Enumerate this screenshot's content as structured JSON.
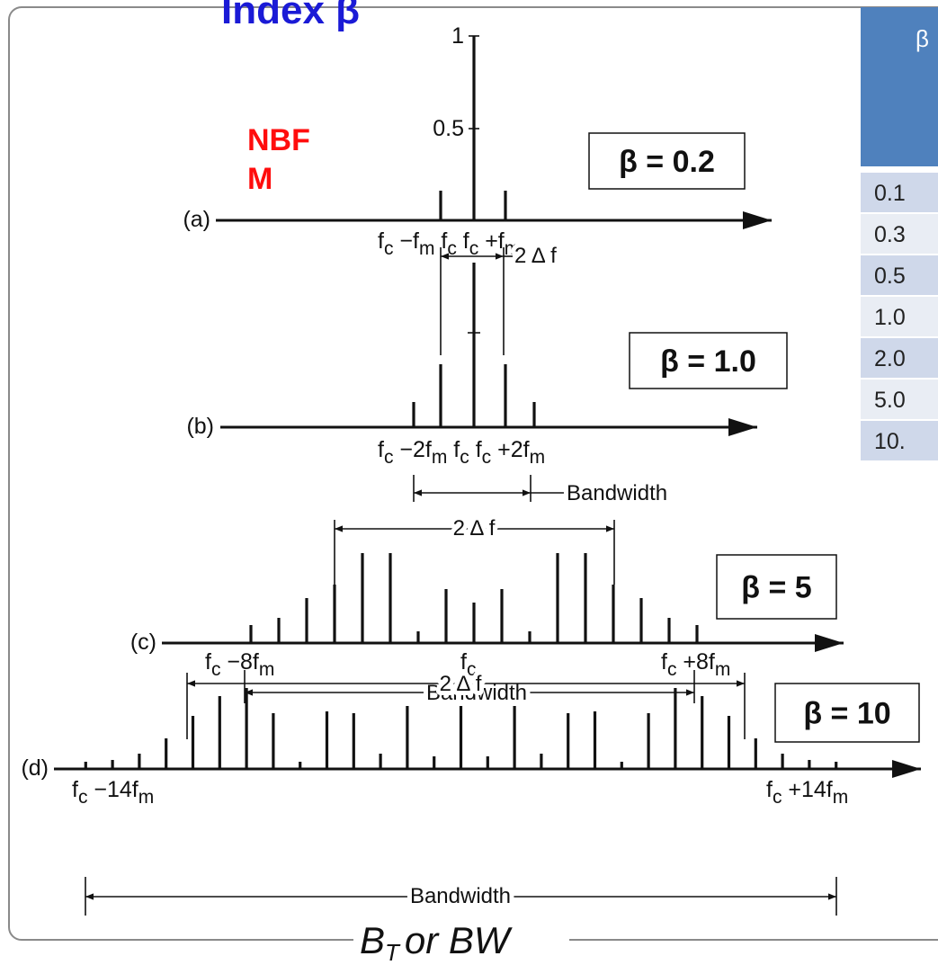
{
  "title": "Index β",
  "nbfm": [
    "NBF",
    "M"
  ],
  "amplitude_ticks": [
    "1",
    "0.5"
  ],
  "panels": [
    {
      "label": "(a)",
      "beta": "β = 0.2",
      "freq_labels": [
        [
          "f",
          "c",
          " −f",
          "m",
          " f",
          "c",
          " f",
          "c",
          " +f",
          "m"
        ]
      ],
      "two_delta_f": "2 Δ f"
    },
    {
      "label": "(b)",
      "beta": "β = 1.0",
      "freq_labels": [
        [
          "f",
          "c",
          " −2f",
          "m",
          " f",
          "c",
          " f",
          "c",
          " +2f",
          "m"
        ]
      ],
      "bandwidth": "Bandwidth"
    },
    {
      "label": "(c)",
      "beta": "β = 5",
      "freq_labels": [
        [
          "f",
          "c",
          " −8f",
          "m"
        ],
        [
          "f",
          "c"
        ],
        [
          "f",
          "c",
          " +8f",
          "m"
        ]
      ],
      "two_delta_f": "2 Δ f",
      "bandwidth": "Bandwidth"
    },
    {
      "label": "(d)",
      "beta": "β = 10",
      "freq_labels": [
        [
          "f",
          "c",
          " −14f",
          "m"
        ],
        [
          "f",
          "c",
          " +14f",
          "m"
        ]
      ],
      "two_delta_f": "2 Δ f",
      "bandwidth": "Bandwidth"
    }
  ],
  "caption": [
    "B",
    "T",
    "or BW"
  ],
  "table": {
    "header": "β",
    "rows": [
      "0.1",
      "0.3",
      "0.5",
      "1.0",
      "2.0",
      "5.0",
      "10."
    ]
  }
}
